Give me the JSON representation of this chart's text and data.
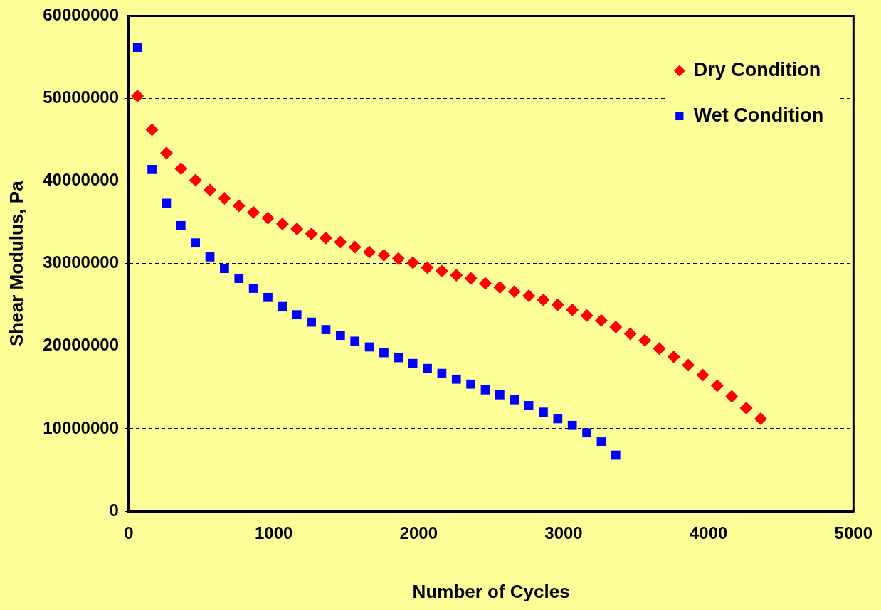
{
  "chart_data": {
    "type": "scatter",
    "xlabel": "Number of Cycles",
    "ylabel": "Shear Modulus, Pa",
    "xlim": [
      0,
      5000
    ],
    "xticks": [
      0,
      1000,
      2000,
      3000,
      4000,
      5000
    ],
    "ylim": [
      0,
      60000000
    ],
    "yticks": [
      0,
      10000000,
      20000000,
      30000000,
      40000000,
      50000000,
      60000000
    ],
    "grid": "y",
    "legend": "top right",
    "series": [
      {
        "name": "Dry Condition",
        "color": "#ff0000",
        "marker": "diamond",
        "x": [
          60,
          160,
          260,
          360,
          460,
          560,
          660,
          760,
          860,
          960,
          1060,
          1160,
          1260,
          1360,
          1460,
          1560,
          1660,
          1760,
          1860,
          1960,
          2060,
          2160,
          2260,
          2360,
          2460,
          2560,
          2660,
          2760,
          2860,
          2960,
          3060,
          3160,
          3260,
          3360,
          3460,
          3560,
          3660,
          3760,
          3860,
          3960,
          4060,
          4160,
          4260,
          4360
        ],
        "values": [
          50300000,
          46200000,
          43400000,
          41500000,
          40100000,
          38900000,
          37900000,
          37000000,
          36200000,
          35500000,
          34800000,
          34200000,
          33600000,
          33100000,
          32600000,
          32000000,
          31400000,
          31000000,
          30600000,
          30100000,
          29500000,
          29100000,
          28600000,
          28200000,
          27600000,
          27100000,
          26600000,
          26100000,
          25600000,
          25000000,
          24400000,
          23700000,
          23100000,
          22300000,
          21500000,
          20700000,
          19700000,
          18700000,
          17700000,
          16500000,
          15200000,
          13900000,
          12500000,
          11200000
        ]
      },
      {
        "name": "Wet Condition",
        "color": "#0000ff",
        "marker": "square",
        "x": [
          60,
          160,
          260,
          360,
          460,
          560,
          660,
          760,
          860,
          960,
          1060,
          1160,
          1260,
          1360,
          1460,
          1560,
          1660,
          1760,
          1860,
          1960,
          2060,
          2160,
          2260,
          2360,
          2460,
          2560,
          2660,
          2760,
          2860,
          2960,
          3060,
          3160,
          3260,
          3360
        ],
        "values": [
          56200000,
          41400000,
          37300000,
          34600000,
          32500000,
          30800000,
          29400000,
          28200000,
          27000000,
          25900000,
          24800000,
          23800000,
          22900000,
          22000000,
          21300000,
          20600000,
          19900000,
          19200000,
          18600000,
          17900000,
          17300000,
          16700000,
          16000000,
          15400000,
          14700000,
          14100000,
          13500000,
          12800000,
          12000000,
          11200000,
          10400000,
          9500000,
          8400000,
          6800000
        ]
      }
    ]
  }
}
